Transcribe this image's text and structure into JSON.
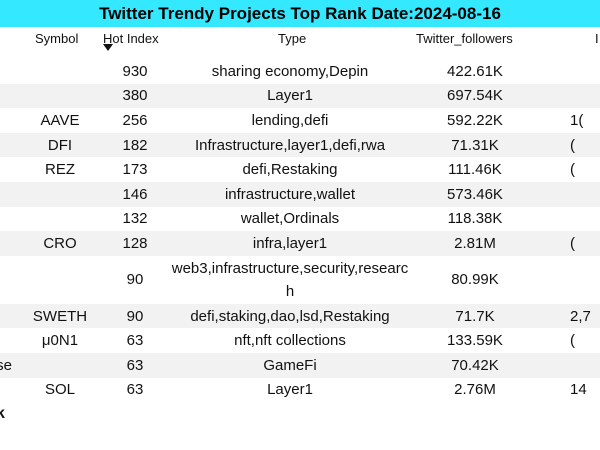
{
  "title": "Twitter Trendy Projects Top Rank Date:2024-08-16",
  "columns": {
    "symbol": "Symbol",
    "hot_index": "Hot Index",
    "type": "Type",
    "twitter_followers": "Twitter_followers",
    "extra": "I"
  },
  "rows": [
    {
      "name": "",
      "symbol": "",
      "hot_index": "930",
      "type": "sharing economy,Depin",
      "twitter_followers": "422.61K",
      "extra": ""
    },
    {
      "name": "",
      "symbol": "",
      "hot_index": "380",
      "type": "Layer1",
      "twitter_followers": "697.54K",
      "extra": ""
    },
    {
      "name": "",
      "symbol": "AAVE",
      "hot_index": "256",
      "type": "lending,defi",
      "twitter_followers": "592.22K",
      "extra": "1("
    },
    {
      "name": "",
      "symbol": "DFI",
      "hot_index": "182",
      "type": "Infrastructure,layer1,defi,rwa",
      "twitter_followers": "71.31K",
      "extra": "("
    },
    {
      "name": "",
      "symbol": "REZ",
      "hot_index": "173",
      "type": "defi,Restaking",
      "twitter_followers": "111.46K",
      "extra": "("
    },
    {
      "name": "",
      "symbol": "",
      "hot_index": "146",
      "type": "infrastructure,wallet",
      "twitter_followers": "573.46K",
      "extra": ""
    },
    {
      "name": "",
      "symbol": "",
      "hot_index": "132",
      "type": "wallet,Ordinals",
      "twitter_followers": "118.38K",
      "extra": ""
    },
    {
      "name": "",
      "symbol": "CRO",
      "hot_index": "128",
      "type": "infra,layer1",
      "twitter_followers": "2.81M",
      "extra": "("
    },
    {
      "name": "",
      "symbol": "",
      "hot_index": "90",
      "type": "web3,infrastructure,security,research",
      "twitter_followers": "80.99K",
      "extra": ""
    },
    {
      "name": "",
      "symbol": "SWETH",
      "hot_index": "90",
      "type": "defi,staking,dao,lsd,Restaking",
      "twitter_followers": "71.7K",
      "extra": "2,7"
    },
    {
      "name": "",
      "symbol": "μ0N1",
      "hot_index": "63",
      "type": "nft,nft collections",
      "twitter_followers": "133.59K",
      "extra": "("
    },
    {
      "name": "se",
      "symbol": "",
      "hot_index": "63",
      "type": "GameFi",
      "twitter_followers": "70.42K",
      "extra": ""
    },
    {
      "name": "",
      "symbol": "SOL",
      "hot_index": "63",
      "type": "Layer1",
      "twitter_followers": "2.76M",
      "extra": "14"
    }
  ],
  "footer_fragment": "k"
}
